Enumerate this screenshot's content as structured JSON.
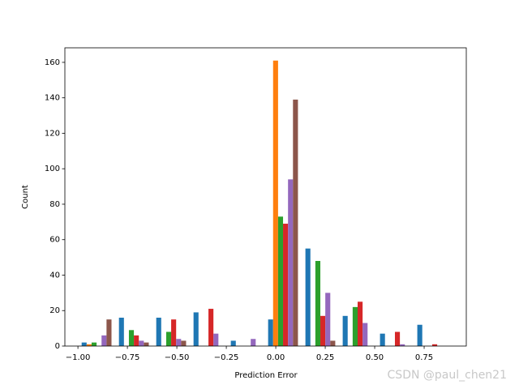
{
  "chart_data": {
    "type": "histogram",
    "xlabel": "Prediction Error",
    "ylabel": "Count",
    "bins": [
      -1.0,
      -0.8115,
      -0.623,
      -0.4345,
      -0.246,
      -0.0575,
      0.131,
      0.3195,
      0.508,
      0.6965,
      0.885
    ],
    "series": [
      {
        "color": "#1f77b4",
        "values": [
          2,
          16,
          16,
          19,
          3,
          15,
          55,
          17,
          7,
          12
        ]
      },
      {
        "color": "#ff7f0e",
        "values": [
          1,
          0,
          0,
          0,
          0,
          161,
          0,
          0,
          0,
          0
        ]
      },
      {
        "color": "#2ca02c",
        "values": [
          2,
          9,
          8,
          0,
          0,
          73,
          48,
          22,
          0,
          0
        ]
      },
      {
        "color": "#d62728",
        "values": [
          0,
          6,
          15,
          21,
          0,
          69,
          17,
          25,
          8,
          1
        ]
      },
      {
        "color": "#9467bd",
        "values": [
          6,
          3,
          4,
          7,
          4,
          94,
          30,
          13,
          1,
          0
        ]
      },
      {
        "color": "#8c564b",
        "values": [
          15,
          2,
          3,
          0,
          0,
          139,
          3,
          0,
          0,
          0
        ]
      }
    ],
    "xlim": [
      -1.066,
      0.963
    ],
    "ylim": [
      0,
      168.2
    ],
    "xticks": [
      {
        "value": -1.0,
        "label": "−1.00"
      },
      {
        "value": -0.75,
        "label": "−0.75"
      },
      {
        "value": -0.5,
        "label": "−0.50"
      },
      {
        "value": -0.25,
        "label": "−0.25"
      },
      {
        "value": 0.0,
        "label": "0.00"
      },
      {
        "value": 0.25,
        "label": "0.25"
      },
      {
        "value": 0.5,
        "label": "0.50"
      },
      {
        "value": 0.75,
        "label": "0.75"
      }
    ],
    "yticks": [
      0,
      20,
      40,
      60,
      80,
      100,
      120,
      140,
      160
    ],
    "watermark": "CSDN @paul_chen21"
  }
}
